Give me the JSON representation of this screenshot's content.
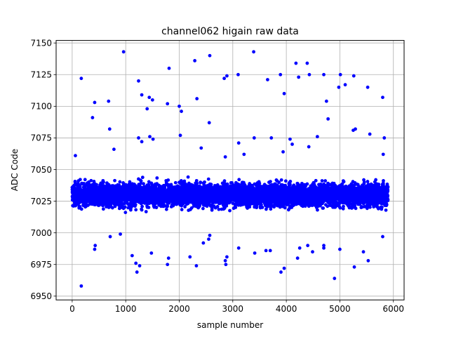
{
  "chart_data": {
    "type": "scatter",
    "title": "channel062 higain raw data",
    "xlabel": "sample number",
    "ylabel": "ADC Code",
    "xlim": [
      -300,
      6200
    ],
    "ylim": [
      6947,
      7152
    ],
    "xticks": [
      0,
      1000,
      2000,
      3000,
      4000,
      5000,
      6000
    ],
    "yticks": [
      6950,
      6975,
      7000,
      7025,
      7050,
      7075,
      7100,
      7125,
      7150
    ],
    "grid": true,
    "marker_color": "#0000ff",
    "n_samples": 5900,
    "core_band": {
      "center": 7030,
      "low": 7011,
      "high": 7051
    },
    "outliers": {
      "x": [
        170,
        420,
        380,
        680,
        700,
        960,
        1240,
        1300,
        1440,
        1500,
        1780,
        1810,
        2000,
        2040,
        2020,
        2290,
        2330,
        2410,
        2570,
        2840,
        2890,
        3100,
        3390,
        3650,
        3890,
        3960,
        4180,
        4230,
        4390,
        4430,
        4700,
        4750,
        4980,
        5010,
        5100,
        5260,
        5290,
        5520,
        5800,
        5830,
        5810,
        60,
        420,
        5440,
        4700,
        4490,
        4250,
        3410,
        2860,
        3110,
        3700,
        900,
        1210,
        1780,
        1800,
        2200,
        2320,
        2550,
        2570,
        2890,
        3620,
        3900,
        3960,
        4210,
        4400,
        4700,
        4900,
        5000,
        5270,
        5530,
        5800,
        170,
        710,
        430,
        1120,
        1190,
        1260,
        1480,
        2450,
        2870,
        1400,
        1510,
        1240,
        3110,
        3400,
        3720,
        1300,
        2560,
        780,
        2860,
        3210,
        4420,
        4070,
        3940,
        4780,
        5250,
        5560,
        4110,
        1450,
        4580
      ],
      "y": [
        7122,
        7103,
        7091,
        7104,
        7082,
        7143,
        7120,
        7109,
        7107,
        7105,
        7102,
        7130,
        7100,
        7096,
        7077,
        7136,
        7106,
        7067,
        7140,
        7122,
        7124,
        7125,
        7143,
        7121,
        7125,
        7110,
        7134,
        7123,
        7134,
        7125,
        7125,
        7104,
        7115,
        7125,
        7117,
        7124,
        7082,
        7115,
        7107,
        7075,
        7062,
        7061,
        6987,
        6985,
        6990,
        6985,
        6988,
        6984,
        6978,
        6988,
        6986,
        6999,
        6969,
        6975,
        6980,
        6981,
        6974,
        6995,
        6998,
        6981,
        6986,
        6969,
        6972,
        6980,
        6990,
        6988,
        6964,
        6987,
        6973,
        6978,
        6997,
        6958,
        6997,
        6990,
        6982,
        6976,
        6974,
        6984,
        6992,
        6975,
        7098,
        7074,
        7075,
        7071,
        7075,
        7075,
        7072,
        7087,
        7066,
        7060,
        7062,
        7068,
        7074,
        7064,
        7090,
        7081,
        7078,
        7070,
        7076,
        7076
      ]
    }
  }
}
